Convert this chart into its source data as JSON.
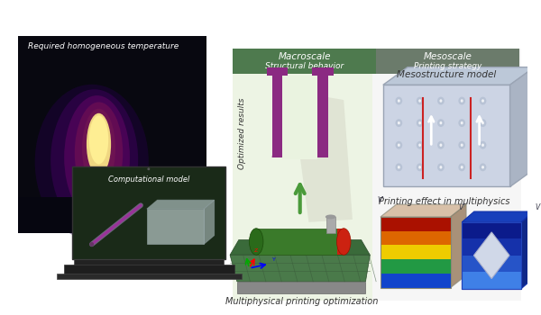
{
  "bg_color": "#ffffff",
  "header_left_color": "#4e7a4e",
  "header_right_color": "#6b7b6b",
  "center_bg_color": "#e8f2e2",
  "right_bg_color": "#f2f2f2",
  "thermal_bg": "#080810",
  "laptop_screen_bg": "#1a2a1a",
  "macro_label": "Macroscale",
  "macro_sub": "Structural behavior",
  "meso_label": "Mesoscale",
  "meso_sub": "Printing strategy",
  "left_title": "Required homogeneous temperature",
  "laptop_label": "Computational model",
  "center_bottom_label": "Multiphysical printing optimization",
  "optimized_label": "Optimized results",
  "meso_top_label": "Mesostructure model",
  "meso_bottom_label": "Printing effect in multiphysics",
  "u_color": "#8b2a82",
  "arrow_color": "#4a9a3a",
  "shadow_color": "#ccccbb"
}
